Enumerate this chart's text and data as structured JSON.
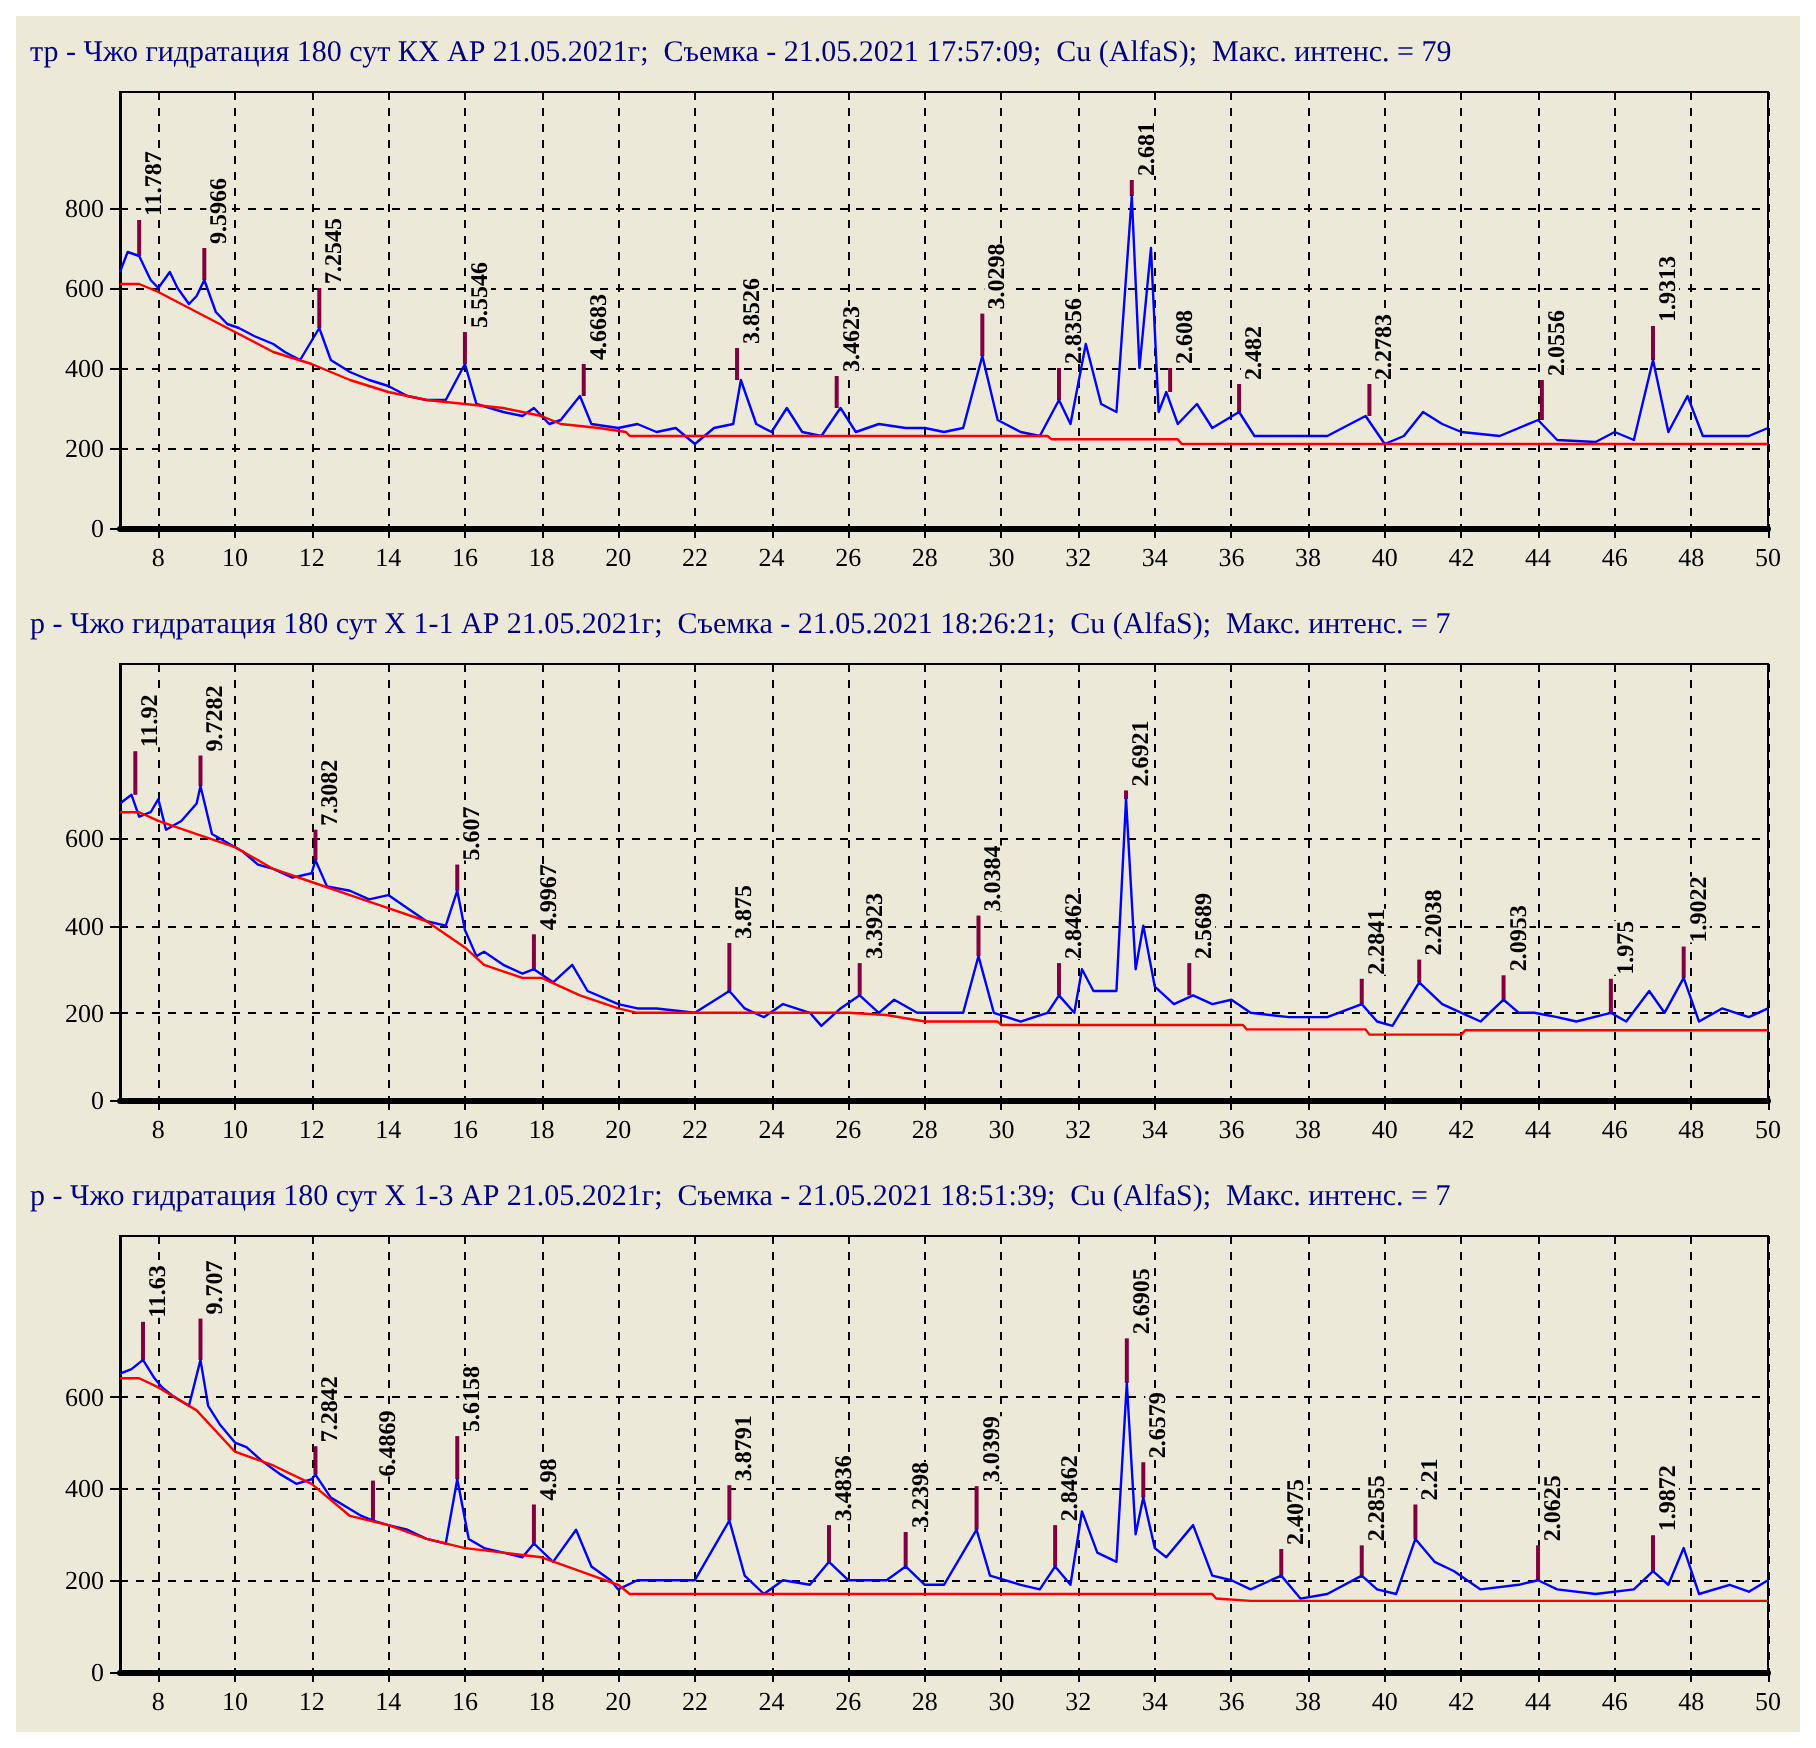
{
  "chart_data": [
    {
      "type": "line",
      "title": "тр - Чжо гидратация 180 сут КХ АР 21.05.2021г;  Съемка - 21.05.2021 17:57:09;  Cu (AlfaS);  Макс. интенс. = 79",
      "xlim": [
        7,
        50
      ],
      "xticks": [
        8,
        10,
        12,
        14,
        16,
        18,
        20,
        22,
        24,
        26,
        28,
        30,
        32,
        34,
        36,
        38,
        40,
        42,
        44,
        46,
        48,
        50
      ],
      "ylim": [
        0,
        1090
      ],
      "yticks": [
        0,
        200,
        400,
        600,
        800
      ],
      "grid": true,
      "marker": "none",
      "series": [
        {
          "color": "#0000ff",
          "x": [
            7.0,
            7.2,
            7.5,
            7.8,
            8.0,
            8.3,
            8.5,
            8.8,
            9.0,
            9.2,
            9.5,
            9.8,
            10.1,
            10.5,
            11.0,
            11.3,
            11.7,
            12.2,
            12.5,
            13.0,
            13.5,
            14.0,
            14.5,
            15.0,
            15.5,
            16.0,
            16.3,
            17.0,
            17.5,
            17.8,
            18.2,
            18.5,
            19.0,
            19.3,
            20.0,
            20.5,
            21.0,
            21.5,
            22.0,
            22.5,
            23.0,
            23.2,
            23.6,
            24.0,
            24.4,
            24.8,
            25.3,
            25.8,
            26.2,
            26.8,
            27.5,
            28.0,
            28.5,
            29.0,
            29.5,
            29.9,
            30.5,
            31.0,
            31.5,
            31.8,
            32.2,
            32.6,
            33.0,
            33.4,
            33.6,
            33.9,
            34.1,
            34.3,
            34.6,
            35.1,
            35.5,
            36.2,
            36.6,
            37.5,
            38.5,
            39.5,
            40.0,
            40.5,
            41.0,
            41.5,
            42.0,
            43.0,
            44.0,
            44.5,
            45.5,
            46.0,
            46.5,
            47.0,
            47.4,
            47.9,
            48.3,
            49.0,
            49.5,
            50.0
          ],
          "values": [
            640,
            690,
            680,
            620,
            600,
            640,
            600,
            560,
            580,
            620,
            540,
            510,
            500,
            480,
            460,
            440,
            420,
            500,
            420,
            390,
            370,
            355,
            330,
            320,
            320,
            410,
            310,
            290,
            280,
            300,
            260,
            270,
            330,
            260,
            250,
            260,
            240,
            250,
            210,
            250,
            260,
            370,
            260,
            240,
            300,
            240,
            230,
            300,
            240,
            260,
            250,
            250,
            240,
            250,
            430,
            270,
            240,
            230,
            320,
            260,
            460,
            310,
            290,
            830,
            400,
            700,
            290,
            340,
            260,
            310,
            250,
            290,
            230,
            230,
            230,
            280,
            210,
            230,
            290,
            260,
            240,
            230,
            270,
            220,
            215,
            240,
            220,
            420,
            240,
            330,
            230,
            230,
            230,
            250
          ]
        },
        {
          "color": "#ff0000",
          "x": [
            7,
            7.5,
            8,
            9,
            10,
            11,
            12,
            13,
            14,
            15,
            16,
            17,
            18,
            18.5,
            19.5,
            20.2,
            20.3,
            31.2,
            31.3,
            34.6,
            34.7,
            50
          ],
          "values": [
            610,
            610,
            590,
            540,
            490,
            440,
            410,
            370,
            340,
            320,
            310,
            300,
            280,
            260,
            250,
            240,
            230,
            230,
            222,
            222,
            210,
            210
          ]
        },
        {
          "type": "bar",
          "color": "#800040",
          "x": [
            7.5,
            9.2,
            12.2,
            16.0,
            19.1,
            23.1,
            25.7,
            29.5,
            31.5,
            33.4,
            34.4,
            36.2,
            39.6,
            44.1,
            47.0
          ],
          "base": [
            680,
            620,
            500,
            410,
            330,
            370,
            300,
            430,
            320,
            830,
            340,
            290,
            280,
            270,
            420
          ],
          "values": [
            90,
            80,
            100,
            80,
            80,
            80,
            80,
            106,
            80,
            40,
            60,
            70,
            80,
            100,
            85
          ]
        }
      ],
      "annotations": [
        {
          "text": "11.787",
          "x": 7.5,
          "y": 770
        },
        {
          "text": "9.5966",
          "x": 9.2,
          "y": 700
        },
        {
          "text": "7.2545",
          "x": 12.2,
          "y": 600
        },
        {
          "text": "5.5546",
          "x": 16.0,
          "y": 490
        },
        {
          "text": "4.6683",
          "x": 19.1,
          "y": 410
        },
        {
          "text": "3.8526",
          "x": 23.1,
          "y": 450
        },
        {
          "text": "3.4623",
          "x": 25.7,
          "y": 380
        },
        {
          "text": "3.0298",
          "x": 29.5,
          "y": 536
        },
        {
          "text": "2.8356",
          "x": 31.5,
          "y": 400
        },
        {
          "text": "2.681",
          "x": 33.4,
          "y": 870
        },
        {
          "text": "2.608",
          "x": 34.4,
          "y": 400
        },
        {
          "text": "2.482",
          "x": 36.2,
          "y": 360
        },
        {
          "text": "2.2783",
          "x": 39.6,
          "y": 360
        },
        {
          "text": "2.0556",
          "x": 44.1,
          "y": 370
        },
        {
          "text": "1.9313",
          "x": 47.0,
          "y": 505
        }
      ]
    },
    {
      "type": "line",
      "title": "р - Чжо гидратация 180 сут Х 1-1 АР 21.05.2021г;  Съемка - 21.05.2021 18:26:21;  Cu (AlfaS);  Макс. интенс. = 7",
      "xlim": [
        7,
        50
      ],
      "xticks": [
        8,
        10,
        12,
        14,
        16,
        18,
        20,
        22,
        24,
        26,
        28,
        30,
        32,
        34,
        36,
        38,
        40,
        42,
        44,
        46,
        48,
        50
      ],
      "ylim": [
        0,
        1000
      ],
      "yticks": [
        0,
        200,
        400,
        600
      ],
      "grid": true,
      "marker": "none",
      "series": [
        {
          "color": "#0000ff",
          "x": [
            7.0,
            7.3,
            7.5,
            7.8,
            8.0,
            8.2,
            8.6,
            9.0,
            9.1,
            9.4,
            9.8,
            10.2,
            10.6,
            11.0,
            11.5,
            12.0,
            12.1,
            12.4,
            13.0,
            13.5,
            14.0,
            14.5,
            15.0,
            15.5,
            15.8,
            16.0,
            16.3,
            16.5,
            17.0,
            17.5,
            17.8,
            18.3,
            18.8,
            19.2,
            20.0,
            20.5,
            21.0,
            22.0,
            22.9,
            23.3,
            23.8,
            24.3,
            25.0,
            25.3,
            25.8,
            26.3,
            26.8,
            27.2,
            27.8,
            28.5,
            29.0,
            29.4,
            29.8,
            30.5,
            31.2,
            31.5,
            31.9,
            32.1,
            32.4,
            33.0,
            33.25,
            33.5,
            33.7,
            34.0,
            34.5,
            35.0,
            35.5,
            36.0,
            36.5,
            37.5,
            38.5,
            39.4,
            39.8,
            40.2,
            40.9,
            41.5,
            42.0,
            42.5,
            43.1,
            43.5,
            43.9,
            44.5,
            45.0,
            45.9,
            46.3,
            46.9,
            47.3,
            47.8,
            48.2,
            48.8,
            49.5,
            50.0
          ],
          "values": [
            680,
            700,
            650,
            660,
            690,
            620,
            640,
            680,
            720,
            610,
            590,
            570,
            540,
            530,
            510,
            520,
            550,
            490,
            480,
            460,
            470,
            440,
            410,
            400,
            480,
            390,
            330,
            340,
            310,
            290,
            300,
            270,
            310,
            250,
            220,
            210,
            210,
            200,
            250,
            210,
            190,
            220,
            200,
            170,
            210,
            240,
            200,
            230,
            200,
            200,
            200,
            330,
            200,
            180,
            200,
            240,
            200,
            300,
            250,
            250,
            690,
            300,
            400,
            260,
            220,
            240,
            220,
            230,
            200,
            190,
            190,
            220,
            180,
            170,
            270,
            220,
            200,
            180,
            230,
            200,
            200,
            190,
            180,
            200,
            180,
            250,
            200,
            280,
            180,
            210,
            190,
            210
          ]
        },
        {
          "color": "#ff0000",
          "x": [
            7,
            7.5,
            8,
            9,
            10,
            11,
            12,
            13,
            14,
            15,
            16,
            16.5,
            17.5,
            18,
            19,
            20,
            20.5,
            26,
            27,
            28,
            29.9,
            30,
            36.3,
            36.4,
            39.5,
            39.6,
            42,
            42.1,
            50
          ],
          "values": [
            660,
            660,
            640,
            610,
            580,
            530,
            500,
            470,
            440,
            410,
            350,
            310,
            280,
            280,
            240,
            210,
            200,
            200,
            195,
            180,
            180,
            172,
            172,
            162,
            162,
            150,
            150,
            160,
            160
          ]
        },
        {
          "type": "bar",
          "color": "#800040",
          "x": [
            7.4,
            9.1,
            12.1,
            15.8,
            17.8,
            22.9,
            26.3,
            29.4,
            31.5,
            33.25,
            34.9,
            39.4,
            40.9,
            43.1,
            45.9,
            47.8
          ],
          "base": [
            700,
            720,
            550,
            480,
            300,
            250,
            240,
            330,
            240,
            690,
            240,
            220,
            270,
            230,
            200,
            280
          ],
          "values": [
            100,
            70,
            70,
            60,
            80,
            110,
            74,
            93,
            74,
            20,
            74,
            58,
            52,
            56,
            78,
            72
          ]
        }
      ],
      "annotations": [
        {
          "text": "11.92",
          "x": 7.4,
          "y": 800
        },
        {
          "text": "9.7282",
          "x": 9.1,
          "y": 790
        },
        {
          "text": "7.3082",
          "x": 12.1,
          "y": 620
        },
        {
          "text": "5.607",
          "x": 15.8,
          "y": 540
        },
        {
          "text": "4.9967",
          "x": 17.8,
          "y": 380
        },
        {
          "text": "3.875",
          "x": 22.9,
          "y": 360
        },
        {
          "text": "3.3923",
          "x": 26.3,
          "y": 314
        },
        {
          "text": "3.0384",
          "x": 29.4,
          "y": 423
        },
        {
          "text": "2.8462",
          "x": 31.5,
          "y": 314
        },
        {
          "text": "2.6921",
          "x": 33.25,
          "y": 710
        },
        {
          "text": "2.5689",
          "x": 34.9,
          "y": 314
        },
        {
          "text": "2.2841",
          "x": 39.4,
          "y": 278
        },
        {
          "text": "2.2038",
          "x": 40.9,
          "y": 322
        },
        {
          "text": "2.0953",
          "x": 43.1,
          "y": 286
        },
        {
          "text": "1.975",
          "x": 45.9,
          "y": 278
        },
        {
          "text": "1.9022",
          "x": 47.8,
          "y": 352
        }
      ]
    },
    {
      "type": "line",
      "title": "р - Чжо гидратация 180 сут Х 1-3 АР 21.05.2021г;  Съемка - 21.05.2021 18:51:39;  Cu (AlfaS);  Макс. интенс. = 7",
      "xlim": [
        7,
        50
      ],
      "xticks": [
        8,
        10,
        12,
        14,
        16,
        18,
        20,
        22,
        24,
        26,
        28,
        30,
        32,
        34,
        36,
        38,
        40,
        42,
        44,
        46,
        48,
        50
      ],
      "ylim": [
        0,
        950
      ],
      "yticks": [
        0,
        200,
        400,
        600
      ],
      "grid": true,
      "marker": "none",
      "series": [
        {
          "color": "#0000ff",
          "x": [
            7.0,
            7.3,
            7.6,
            7.9,
            8.1,
            8.4,
            8.8,
            9.1,
            9.3,
            9.6,
            10.0,
            10.3,
            10.7,
            11.2,
            11.6,
            12.0,
            12.1,
            12.5,
            12.9,
            13.3,
            13.6,
            14.0,
            14.5,
            15.0,
            15.5,
            15.8,
            16.1,
            16.5,
            17.0,
            17.5,
            17.8,
            18.3,
            18.9,
            19.3,
            19.8,
            20.0,
            20.5,
            21.0,
            22.0,
            22.9,
            23.3,
            23.8,
            24.3,
            25.0,
            25.5,
            26.0,
            27.0,
            27.5,
            28.0,
            28.5,
            29.35,
            29.7,
            30.5,
            31.0,
            31.4,
            31.8,
            32.1,
            32.5,
            33.0,
            33.27,
            33.5,
            33.7,
            34.0,
            34.3,
            35.0,
            35.5,
            36.0,
            36.5,
            37.3,
            37.8,
            38.5,
            39.4,
            39.8,
            40.3,
            40.8,
            41.3,
            41.8,
            42.5,
            43.5,
            44.0,
            44.5,
            45.5,
            46.5,
            47.0,
            47.4,
            47.8,
            48.2,
            49.0,
            49.5,
            50.0
          ],
          "values": [
            650,
            660,
            680,
            640,
            620,
            600,
            580,
            680,
            580,
            540,
            500,
            490,
            460,
            430,
            410,
            420,
            430,
            380,
            360,
            340,
            330,
            320,
            310,
            290,
            280,
            420,
            290,
            270,
            260,
            250,
            280,
            240,
            310,
            230,
            200,
            180,
            200,
            200,
            200,
            330,
            210,
            170,
            200,
            190,
            240,
            200,
            200,
            230,
            190,
            190,
            310,
            210,
            190,
            180,
            230,
            190,
            350,
            260,
            240,
            630,
            300,
            380,
            270,
            250,
            320,
            210,
            200,
            180,
            210,
            160,
            170,
            210,
            180,
            170,
            290,
            240,
            220,
            180,
            190,
            200,
            180,
            170,
            180,
            220,
            190,
            270,
            170,
            190,
            175,
            200
          ]
        },
        {
          "color": "#ff0000",
          "x": [
            7,
            7.5,
            8,
            9,
            10,
            11,
            12,
            13,
            14,
            15,
            16,
            17,
            18,
            19,
            20,
            20.3,
            35.5,
            35.6,
            36.5,
            50
          ],
          "values": [
            640,
            640,
            620,
            570,
            480,
            450,
            410,
            340,
            320,
            290,
            270,
            260,
            250,
            220,
            190,
            170,
            170,
            160,
            155,
            155
          ]
        },
        {
          "type": "bar",
          "color": "#800040",
          "x": [
            7.6,
            9.1,
            12.1,
            13.6,
            15.8,
            17.8,
            22.9,
            25.5,
            27.5,
            29.35,
            31.4,
            33.27,
            33.7,
            37.3,
            39.4,
            40.8,
            44.0,
            47.0
          ],
          "base": [
            680,
            680,
            430,
            330,
            420,
            280,
            330,
            240,
            230,
            310,
            230,
            630,
            380,
            210,
            210,
            290,
            200,
            220
          ],
          "values": [
            83,
            90,
            62,
            87,
            94,
            85,
            77,
            80,
            75,
            95,
            90,
            97,
            77,
            58,
            66,
            75,
            76,
            78
          ]
        }
      ],
      "annotations": [
        {
          "text": "11.63",
          "x": 7.6,
          "y": 763
        },
        {
          "text": "9.707",
          "x": 9.1,
          "y": 770
        },
        {
          "text": "7.2842",
          "x": 12.1,
          "y": 492
        },
        {
          "text": "6.4869",
          "x": 13.6,
          "y": 417
        },
        {
          "text": "5.6158",
          "x": 15.8,
          "y": 514
        },
        {
          "text": "4.98",
          "x": 17.8,
          "y": 365
        },
        {
          "text": "3.8791",
          "x": 22.9,
          "y": 407
        },
        {
          "text": "3.4836",
          "x": 25.5,
          "y": 320
        },
        {
          "text": "3.2398",
          "x": 27.5,
          "y": 305
        },
        {
          "text": "3.0399",
          "x": 29.35,
          "y": 405
        },
        {
          "text": "2.8462",
          "x": 31.4,
          "y": 320
        },
        {
          "text": "2.6905",
          "x": 33.27,
          "y": 727
        },
        {
          "text": "2.6579",
          "x": 33.7,
          "y": 457
        },
        {
          "text": "2.4075",
          "x": 37.3,
          "y": 268
        },
        {
          "text": "2.2855",
          "x": 39.4,
          "y": 276
        },
        {
          "text": "2.21",
          "x": 40.8,
          "y": 365
        },
        {
          "text": "2.0625",
          "x": 44.0,
          "y": 276
        },
        {
          "text": "1.9872",
          "x": 47.0,
          "y": 298
        }
      ]
    }
  ]
}
